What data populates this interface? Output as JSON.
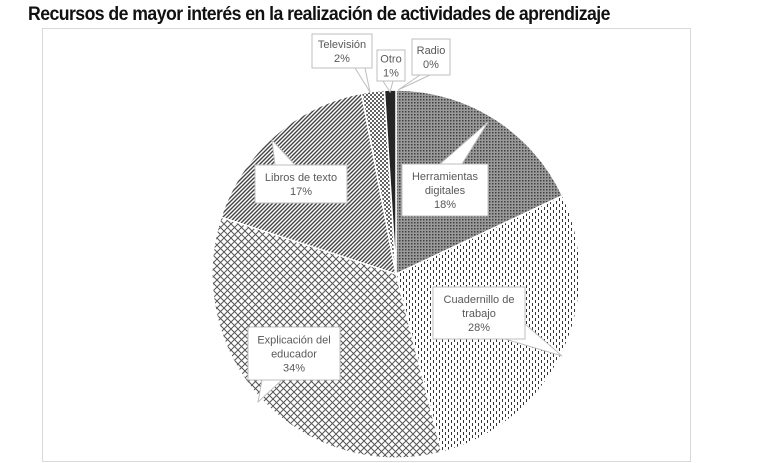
{
  "chart_data": {
    "type": "pie",
    "title": "Recursos de mayor interés en la realización de actividades de aprendizaje",
    "start": "12 o'clock, clockwise",
    "legend": "none (callout data labels)",
    "slices": [
      {
        "name": "Radio",
        "value": 0,
        "label": "0%",
        "pattern": "none",
        "color": "#ffffff"
      },
      {
        "name": "Herramientas digitales",
        "name_lines": [
          "Herramientas",
          "digitales"
        ],
        "value": 18,
        "label": "18%",
        "pattern": "dense-dots",
        "color": "#7f7f7f"
      },
      {
        "name": "Cuadernillo de trabajo",
        "name_lines": [
          "Cuadernillo de",
          "trabajo"
        ],
        "value": 28,
        "label": "28%",
        "pattern": "vertical-dashes",
        "color": "#404040"
      },
      {
        "name": "Explicación del educador",
        "name_lines": [
          "Explicación del",
          "educador"
        ],
        "value": 34,
        "label": "34%",
        "pattern": "crosshatch",
        "color": "#595959"
      },
      {
        "name": "Libros de texto",
        "name_lines": [
          "Libros de texto"
        ],
        "value": 17,
        "label": "17%",
        "pattern": "diagonal-stripes",
        "color": "#404040"
      },
      {
        "name": "Televisión",
        "name_lines": [
          "Televisión"
        ],
        "value": 2,
        "label": "2%",
        "pattern": "dots",
        "color": "#404040"
      },
      {
        "name": "Otro",
        "name_lines": [
          "Otro"
        ],
        "value": 1,
        "label": "1%",
        "pattern": "solid",
        "color": "#262626"
      }
    ]
  }
}
